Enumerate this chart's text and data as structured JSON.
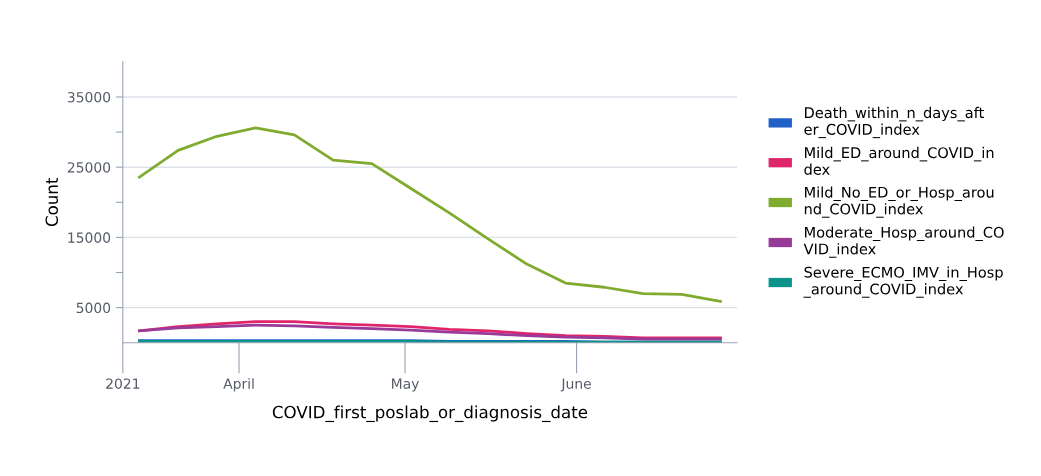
{
  "chart_data": {
    "type": "line",
    "xlabel": "COVID_first_poslab_or_diagnosis_date",
    "ylabel": "Count",
    "x": [
      "2021-03-14",
      "2021-03-21",
      "2021-03-28",
      "2021-04-04",
      "2021-04-11",
      "2021-04-18",
      "2021-04-25",
      "2021-05-02",
      "2021-05-09",
      "2021-05-16",
      "2021-05-23",
      "2021-05-30",
      "2021-06-06",
      "2021-06-13",
      "2021-06-20",
      "2021-06-27"
    ],
    "series": [
      {
        "name": "Death_within_n_days_after_COVID_index",
        "color": "#2060c8",
        "values": [
          300,
          300,
          300,
          300,
          300,
          300,
          300,
          300,
          200,
          200,
          200,
          200,
          100,
          100,
          100,
          100
        ]
      },
      {
        "name": "Mild_ED_around_COVID_index",
        "color": "#e0266b",
        "values": [
          1700,
          2300,
          2700,
          3000,
          3000,
          2700,
          2500,
          2300,
          1900,
          1700,
          1300,
          1000,
          900,
          700,
          700,
          700
        ]
      },
      {
        "name": "Mild_No_ED_or_Hosp_around_COVID_index",
        "color": "#7fab2f",
        "values": [
          23600,
          27400,
          29400,
          30600,
          29600,
          26000,
          25500,
          22000,
          18500,
          14800,
          11200,
          8500,
          7900,
          7000,
          6900,
          5900
        ]
      },
      {
        "name": "Moderate_Hosp_around_COVID_index",
        "color": "#983b98",
        "values": [
          1700,
          2100,
          2300,
          2500,
          2400,
          2200,
          2000,
          1800,
          1500,
          1300,
          1000,
          800,
          700,
          500,
          500,
          500
        ]
      },
      {
        "name": "Severe_ECMO_IMV_in_Hosp_around_COVID_index",
        "color": "#0d948a",
        "values": [
          200,
          200,
          200,
          200,
          200,
          200,
          200,
          200,
          100,
          100,
          100,
          100,
          100,
          100,
          100,
          100
        ]
      }
    ],
    "xlim": [
      "2021-03-11",
      "2021-06-30"
    ],
    "xticks": [
      {
        "value": "2021-03-11",
        "label": "2021"
      },
      {
        "value": "2021-04-01",
        "label": "April"
      },
      {
        "value": "2021-05-01",
        "label": "May"
      },
      {
        "value": "2021-06-01",
        "label": "June"
      }
    ],
    "ylim": [
      0,
      40000
    ],
    "yticks": [
      5000,
      {
        "value": 10000,
        "label": null
      },
      15000,
      {
        "value": 20000,
        "label": null
      },
      25000,
      {
        "value": 30000,
        "label": null
      },
      35000
    ],
    "grid": "y",
    "legend": "right",
    "marker": "none",
    "line_style": "solid"
  }
}
